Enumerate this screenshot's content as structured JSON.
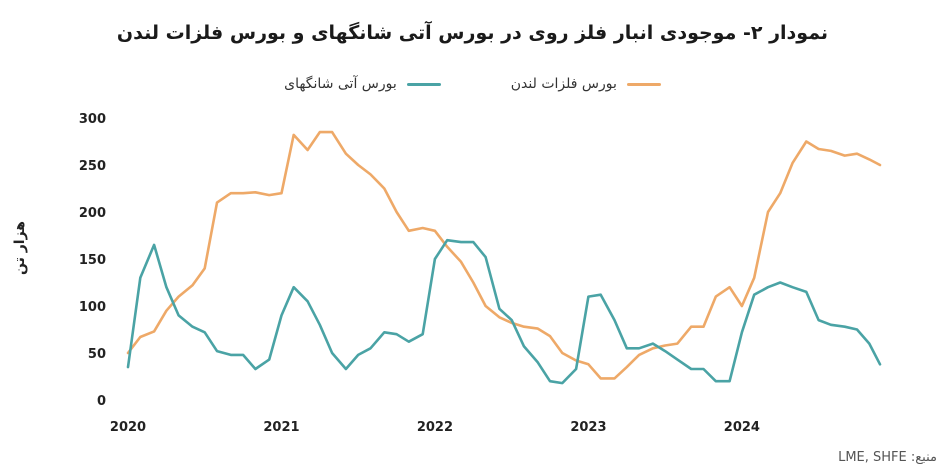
{
  "chart_data": {
    "type": "line",
    "title": "نمودار ۲- موجودی انبار فلز روی در بورس آتی شانگهای و بورس فلزات لندن",
    "ylabel": "هزار تن",
    "ylim": [
      0,
      300
    ],
    "yticks": [
      "0",
      "50",
      "100",
      "150",
      "200",
      "250",
      "300"
    ],
    "xlim": [
      2020,
      2024.9
    ],
    "xticks": [
      {
        "value": 2020,
        "label": "2020"
      },
      {
        "value": 2021,
        "label": "2021"
      },
      {
        "value": 2022,
        "label": "2022"
      },
      {
        "value": 2023,
        "label": "2023"
      },
      {
        "value": 2024,
        "label": "2024"
      }
    ],
    "legend_position": "top",
    "grid": false,
    "series": [
      {
        "name": "بورس فلزات لندن",
        "color": "#EEA968",
        "x": [
          2020.0,
          2020.08,
          2020.17,
          2020.25,
          2020.33,
          2020.42,
          2020.5,
          2020.58,
          2020.67,
          2020.75,
          2020.83,
          2020.92,
          2021.0,
          2021.08,
          2021.17,
          2021.25,
          2021.33,
          2021.42,
          2021.5,
          2021.58,
          2021.67,
          2021.75,
          2021.83,
          2021.92,
          2022.0,
          2022.08,
          2022.17,
          2022.25,
          2022.33,
          2022.42,
          2022.5,
          2022.58,
          2022.67,
          2022.75,
          2022.83,
          2022.92,
          2023.0,
          2023.08,
          2023.17,
          2023.25,
          2023.33,
          2023.42,
          2023.5,
          2023.58,
          2023.67,
          2023.75,
          2023.83,
          2023.92,
          2024.0,
          2024.08,
          2024.17,
          2024.25,
          2024.33,
          2024.42,
          2024.5,
          2024.58,
          2024.67,
          2024.75,
          2024.83,
          2024.9
        ],
        "values": [
          50,
          67,
          73,
          95,
          110,
          122,
          140,
          210,
          220,
          220,
          221,
          218,
          220,
          282,
          266,
          285,
          285,
          262,
          250,
          240,
          225,
          200,
          180,
          183,
          180,
          163,
          147,
          125,
          100,
          88,
          82,
          78,
          76,
          68,
          50,
          42,
          38,
          23,
          23,
          35,
          48,
          55,
          58,
          60,
          78,
          78,
          110,
          120,
          100,
          130,
          200,
          220,
          252,
          275,
          267,
          265,
          260,
          262,
          256,
          250
        ],
        "values_kt": "thousand tonnes"
      },
      {
        "name": "بورس آتی شانگهای",
        "color": "#4AA3A5",
        "x": [
          2020.0,
          2020.08,
          2020.17,
          2020.25,
          2020.33,
          2020.42,
          2020.5,
          2020.58,
          2020.67,
          2020.75,
          2020.83,
          2020.92,
          2021.0,
          2021.08,
          2021.17,
          2021.25,
          2021.33,
          2021.42,
          2021.5,
          2021.58,
          2021.67,
          2021.75,
          2021.83,
          2021.92,
          2022.0,
          2022.08,
          2022.17,
          2022.25,
          2022.33,
          2022.42,
          2022.5,
          2022.58,
          2022.67,
          2022.75,
          2022.83,
          2022.92,
          2023.0,
          2023.08,
          2023.17,
          2023.25,
          2023.33,
          2023.42,
          2023.5,
          2023.58,
          2023.67,
          2023.75,
          2023.83,
          2023.92,
          2024.0,
          2024.08,
          2024.17,
          2024.25,
          2024.33,
          2024.42,
          2024.5,
          2024.58,
          2024.67,
          2024.75,
          2024.83,
          2024.9
        ],
        "values": [
          35,
          130,
          165,
          120,
          90,
          78,
          72,
          52,
          48,
          48,
          33,
          43,
          90,
          120,
          105,
          80,
          50,
          33,
          48,
          55,
          72,
          70,
          62,
          70,
          150,
          170,
          168,
          168,
          152,
          97,
          85,
          57,
          40,
          20,
          18,
          33,
          110,
          112,
          85,
          55,
          55,
          60,
          52,
          43,
          33,
          33,
          20,
          20,
          72,
          112,
          120,
          125,
          120,
          115,
          85,
          80,
          78,
          75,
          60,
          38
        ]
      }
    ]
  },
  "source": "منبع: LME, SHFE"
}
